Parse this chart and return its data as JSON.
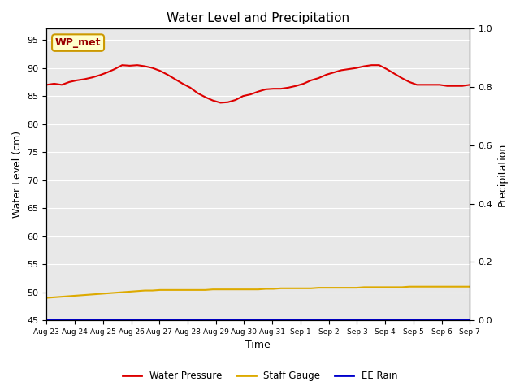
{
  "title": "Water Level and Precipitation",
  "xlabel": "Time",
  "ylabel_left": "Water Level (cm)",
  "ylabel_right": "Precipitation",
  "annotation_text": "WP_met",
  "annotation_bg": "#ffffcc",
  "annotation_border": "#cc9900",
  "annotation_color": "#990000",
  "ylim_left": [
    45,
    97
  ],
  "ylim_right": [
    0.0,
    1.0
  ],
  "yticks_left": [
    45,
    50,
    55,
    60,
    65,
    70,
    75,
    80,
    85,
    90,
    95
  ],
  "yticks_right": [
    0.0,
    0.2,
    0.4,
    0.6,
    0.8,
    1.0
  ],
  "bg_color": "#e8e8e8",
  "legend_labels": [
    "Water Pressure",
    "Staff Gauge",
    "EE Rain"
  ],
  "legend_colors": [
    "#dd0000",
    "#ddaa00",
    "#0000cc"
  ],
  "water_pressure": [
    87.0,
    87.2,
    87.0,
    87.5,
    87.8,
    88.0,
    88.3,
    88.7,
    89.2,
    89.8,
    90.5,
    90.4,
    90.5,
    90.3,
    90.0,
    89.5,
    88.8,
    88.0,
    87.2,
    86.5,
    85.5,
    84.8,
    84.2,
    83.8,
    83.9,
    84.3,
    85.0,
    85.3,
    85.8,
    86.2,
    86.3,
    86.3,
    86.5,
    86.8,
    87.2,
    87.8,
    88.2,
    88.8,
    89.2,
    89.6,
    89.8,
    90.0,
    90.3,
    90.5,
    90.5,
    89.8,
    89.0,
    88.2,
    87.5,
    87.0,
    87.0,
    87.0,
    87.0,
    86.8,
    86.8,
    86.8,
    87.0
  ],
  "staff_gauge": [
    49.0,
    49.1,
    49.2,
    49.3,
    49.4,
    49.5,
    49.6,
    49.7,
    49.8,
    49.9,
    50.0,
    50.1,
    50.2,
    50.3,
    50.3,
    50.4,
    50.4,
    50.4,
    50.4,
    50.4,
    50.4,
    50.4,
    50.5,
    50.5,
    50.5,
    50.5,
    50.5,
    50.5,
    50.5,
    50.6,
    50.6,
    50.7,
    50.7,
    50.7,
    50.7,
    50.7,
    50.8,
    50.8,
    50.8,
    50.8,
    50.8,
    50.8,
    50.9,
    50.9,
    50.9,
    50.9,
    50.9,
    50.9,
    51.0,
    51.0,
    51.0,
    51.0,
    51.0,
    51.0,
    51.0,
    51.0,
    51.0
  ],
  "ee_rain": [
    0.0,
    0.0,
    0.0,
    0.0,
    0.0,
    0.0,
    0.0,
    0.0,
    0.0,
    0.0,
    0.0,
    0.0,
    0.0,
    0.0,
    0.0,
    0.0,
    0.0,
    0.0,
    0.0,
    0.0,
    0.0,
    0.0,
    0.0,
    0.0,
    0.0,
    0.0,
    0.0,
    0.0,
    0.0,
    0.0,
    0.0,
    0.0,
    0.0,
    0.0,
    0.0,
    0.0,
    0.0,
    0.0,
    0.0,
    0.0,
    0.0,
    0.0,
    0.0,
    0.0,
    0.0,
    0.0,
    0.0,
    0.0,
    0.0,
    0.0,
    0.0,
    0.0,
    0.0,
    0.0,
    0.0,
    0.0,
    0.0
  ],
  "x_labels": [
    "Aug 23",
    "Aug 24",
    "Aug 25",
    "Aug 26",
    "Aug 27",
    "Aug 28",
    "Aug 29",
    "Aug 30",
    "Aug 31",
    "Sep 1",
    "Sep 2",
    "Sep 3",
    "Sep 4",
    "Sep 5",
    "Sep 6",
    "Sep 7"
  ],
  "n_points": 57
}
